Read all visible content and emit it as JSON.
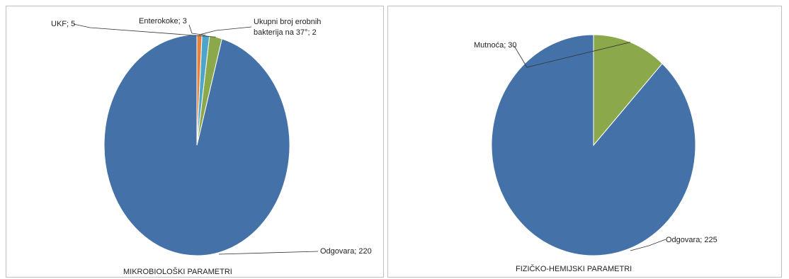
{
  "chart_data": [
    {
      "type": "pie",
      "xlabel": "MIKROBIOLOŠKI PARAMETRI",
      "slices": [
        {
          "label": "Odgovara",
          "value": 220,
          "color": "#4472A8",
          "text": "Odgovara; 220"
        },
        {
          "label": "UKF",
          "value": 5,
          "color": "#8BA94A",
          "text": "UKF; 5"
        },
        {
          "label": "Enterokoke",
          "value": 3,
          "color": "#4DA5C9",
          "text": "Enterokoke; 3"
        },
        {
          "label": "Ukupni broj erobnih bakterija na 37°",
          "value": 2,
          "color": "#E8823A",
          "text_lines": [
            "Ukupni broj erobnih",
            "bakterija na 37°; 2"
          ]
        }
      ]
    },
    {
      "type": "pie",
      "xlabel": "FIZIČKO-HEMIJSKI PARAMETRI",
      "slices": [
        {
          "label": "Odgovara",
          "value": 225,
          "color": "#4472A8",
          "text": "Odgovara; 225"
        },
        {
          "label": "Mutnoća",
          "value": 30,
          "color": "#8BA94A",
          "text": "Mutnoća; 30"
        }
      ]
    }
  ]
}
